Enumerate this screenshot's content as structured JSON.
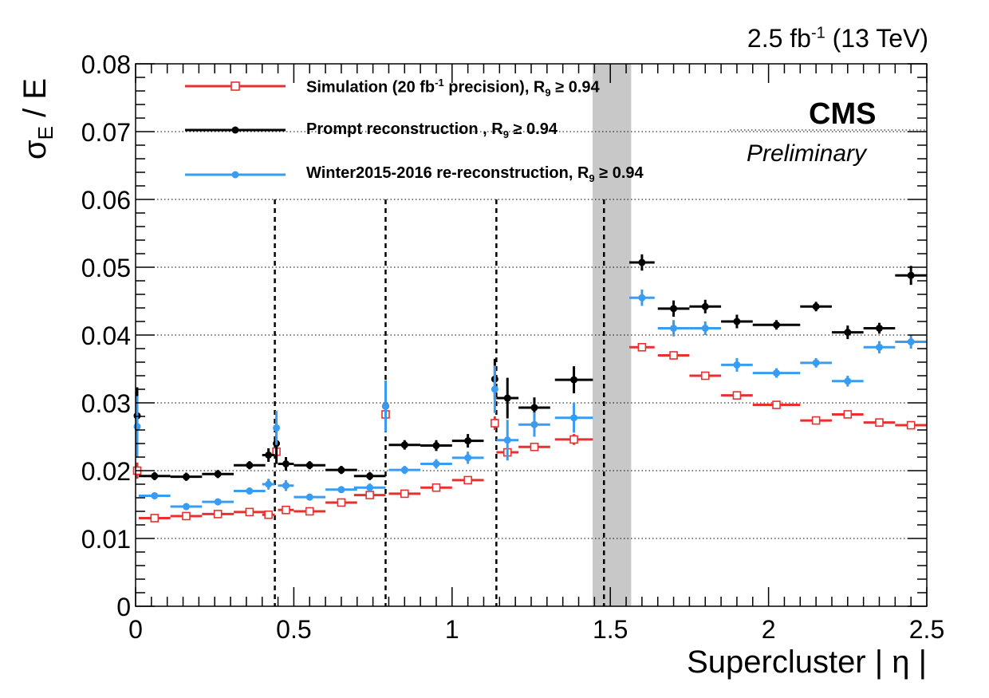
{
  "header": {
    "lumi_value": "2.5 fb",
    "lumi_exp": "-1",
    "energy": "(13 TeV)",
    "cms": "CMS",
    "preliminary": "Preliminary"
  },
  "chart_data": {
    "type": "scatter",
    "title": "",
    "xlabel": "Supercluster | η |",
    "ylabel": "σ_E / E",
    "xlim": [
      0,
      2.5
    ],
    "ylim": [
      0,
      0.08
    ],
    "x_ticks": [
      "0",
      "0.5",
      "1",
      "1.5",
      "2",
      "2.5"
    ],
    "y_ticks": [
      "0",
      "0.01",
      "0.02",
      "0.03",
      "0.04",
      "0.05",
      "0.06",
      "0.07",
      "0.08"
    ],
    "grid": "horizontal dotted",
    "legend_position": "top-left",
    "vertical_dashed_lines": [
      0.44,
      0.79,
      1.14,
      1.48
    ],
    "excluded_band": [
      1.4442,
      1.566
    ],
    "series": [
      {
        "name": "Simulation (20 fb-1 precision), R9 ≥ 0.94",
        "legend_main": "Simulation (20 fb",
        "legend_sup": "-1",
        "legend_rest": " precision), R",
        "legend_sub": "9",
        "legend_tail": "  ≥ 0.94",
        "color": "#e8302f",
        "marker": "open-square",
        "points": [
          {
            "x": 0.005,
            "xerr": 0.005,
            "y": 0.02,
            "yerr": 0.0012
          },
          {
            "x": 0.06,
            "xerr": 0.05,
            "y": 0.013,
            "yerr": 0.0003
          },
          {
            "x": 0.16,
            "xerr": 0.05,
            "y": 0.0133,
            "yerr": 0.0003
          },
          {
            "x": 0.26,
            "xerr": 0.05,
            "y": 0.0136,
            "yerr": 0.0003
          },
          {
            "x": 0.36,
            "xerr": 0.05,
            "y": 0.0139,
            "yerr": 0.0003
          },
          {
            "x": 0.42,
            "xerr": 0.02,
            "y": 0.0135,
            "yerr": 0.0003
          },
          {
            "x": 0.445,
            "xerr": 0.005,
            "y": 0.0228,
            "yerr": 0.001
          },
          {
            "x": 0.475,
            "xerr": 0.025,
            "y": 0.0142,
            "yerr": 0.0003
          },
          {
            "x": 0.55,
            "xerr": 0.05,
            "y": 0.014,
            "yerr": 0.0003
          },
          {
            "x": 0.65,
            "xerr": 0.05,
            "y": 0.0153,
            "yerr": 0.0003
          },
          {
            "x": 0.74,
            "xerr": 0.05,
            "y": 0.0164,
            "yerr": 0.0003
          },
          {
            "x": 0.79,
            "xerr": 0.005,
            "y": 0.0283,
            "yerr": 0.001
          },
          {
            "x": 0.85,
            "xerr": 0.05,
            "y": 0.0166,
            "yerr": 0.0003
          },
          {
            "x": 0.95,
            "xerr": 0.05,
            "y": 0.0175,
            "yerr": 0.0003
          },
          {
            "x": 1.05,
            "xerr": 0.05,
            "y": 0.0186,
            "yerr": 0.0003
          },
          {
            "x": 1.135,
            "xerr": 0.005,
            "y": 0.027,
            "yerr": 0.001
          },
          {
            "x": 1.175,
            "xerr": 0.035,
            "y": 0.0227,
            "yerr": 0.0006
          },
          {
            "x": 1.26,
            "xerr": 0.05,
            "y": 0.0235,
            "yerr": 0.0006
          },
          {
            "x": 1.385,
            "xerr": 0.06,
            "y": 0.0246,
            "yerr": 0.0008
          },
          {
            "x": 1.6,
            "xerr": 0.04,
            "y": 0.0382,
            "yerr": 0.0006
          },
          {
            "x": 1.7,
            "xerr": 0.05,
            "y": 0.037,
            "yerr": 0.0006
          },
          {
            "x": 1.8,
            "xerr": 0.05,
            "y": 0.034,
            "yerr": 0.0006
          },
          {
            "x": 1.9,
            "xerr": 0.05,
            "y": 0.0311,
            "yerr": 0.0006
          },
          {
            "x": 2.025,
            "xerr": 0.075,
            "y": 0.0297,
            "yerr": 0.0006
          },
          {
            "x": 2.15,
            "xerr": 0.05,
            "y": 0.0274,
            "yerr": 0.0006
          },
          {
            "x": 2.25,
            "xerr": 0.05,
            "y": 0.0283,
            "yerr": 0.0006
          },
          {
            "x": 2.35,
            "xerr": 0.05,
            "y": 0.0271,
            "yerr": 0.0006
          },
          {
            "x": 2.45,
            "xerr": 0.05,
            "y": 0.0267,
            "yerr": 0.0006
          }
        ]
      },
      {
        "name": "Prompt reconstruction , R9 ≥ 0.94",
        "legend_main": "Prompt reconstruction , R",
        "legend_sup": "",
        "legend_rest": "",
        "legend_sub": "9",
        "legend_tail": "  ≥ 0.94",
        "color": "#000000",
        "marker": "filled-circle",
        "points": [
          {
            "x": 0.005,
            "xerr": 0.005,
            "y": 0.0281,
            "yerr": 0.0042
          },
          {
            "x": 0.06,
            "xerr": 0.05,
            "y": 0.0192,
            "yerr": 0.0006
          },
          {
            "x": 0.16,
            "xerr": 0.05,
            "y": 0.0191,
            "yerr": 0.0006
          },
          {
            "x": 0.26,
            "xerr": 0.05,
            "y": 0.0195,
            "yerr": 0.0006
          },
          {
            "x": 0.36,
            "xerr": 0.05,
            "y": 0.0208,
            "yerr": 0.0006
          },
          {
            "x": 0.42,
            "xerr": 0.02,
            "y": 0.0223,
            "yerr": 0.001
          },
          {
            "x": 0.445,
            "xerr": 0.005,
            "y": 0.024,
            "yerr": 0.003
          },
          {
            "x": 0.475,
            "xerr": 0.025,
            "y": 0.021,
            "yerr": 0.001
          },
          {
            "x": 0.55,
            "xerr": 0.05,
            "y": 0.0208,
            "yerr": 0.0006
          },
          {
            "x": 0.65,
            "xerr": 0.05,
            "y": 0.0201,
            "yerr": 0.0006
          },
          {
            "x": 0.74,
            "xerr": 0.05,
            "y": 0.0192,
            "yerr": 0.0006
          },
          {
            "x": 0.79,
            "xerr": 0.005,
            "y": 0.0295,
            "yerr": 0.0035
          },
          {
            "x": 0.85,
            "xerr": 0.05,
            "y": 0.0238,
            "yerr": 0.0007
          },
          {
            "x": 0.95,
            "xerr": 0.05,
            "y": 0.0237,
            "yerr": 0.0008
          },
          {
            "x": 1.05,
            "xerr": 0.05,
            "y": 0.0244,
            "yerr": 0.001
          },
          {
            "x": 1.135,
            "xerr": 0.005,
            "y": 0.0335,
            "yerr": 0.003
          },
          {
            "x": 1.175,
            "xerr": 0.035,
            "y": 0.0307,
            "yerr": 0.003
          },
          {
            "x": 1.26,
            "xerr": 0.05,
            "y": 0.0293,
            "yerr": 0.0015
          },
          {
            "x": 1.385,
            "xerr": 0.06,
            "y": 0.0334,
            "yerr": 0.002
          },
          {
            "x": 1.6,
            "xerr": 0.04,
            "y": 0.0507,
            "yerr": 0.0012
          },
          {
            "x": 1.7,
            "xerr": 0.05,
            "y": 0.0439,
            "yerr": 0.0012
          },
          {
            "x": 1.8,
            "xerr": 0.05,
            "y": 0.0442,
            "yerr": 0.001
          },
          {
            "x": 1.9,
            "xerr": 0.05,
            "y": 0.042,
            "yerr": 0.001
          },
          {
            "x": 2.025,
            "xerr": 0.075,
            "y": 0.0415,
            "yerr": 0.0007
          },
          {
            "x": 2.15,
            "xerr": 0.05,
            "y": 0.0442,
            "yerr": 0.0007
          },
          {
            "x": 2.25,
            "xerr": 0.05,
            "y": 0.0404,
            "yerr": 0.001
          },
          {
            "x": 2.35,
            "xerr": 0.05,
            "y": 0.041,
            "yerr": 0.0008
          },
          {
            "x": 2.45,
            "xerr": 0.05,
            "y": 0.0488,
            "yerr": 0.0014
          }
        ]
      },
      {
        "name": "Winter2015-2016 re-reconstruction, R9 ≥ 0.94",
        "legend_main": "Winter2015-2016 re-reconstruction, R",
        "legend_sup": "",
        "legend_rest": "",
        "legend_sub": "9",
        "legend_tail": "  ≥ 0.94",
        "color": "#3a9cf0",
        "marker": "filled-circle",
        "points": [
          {
            "x": 0.005,
            "xerr": 0.005,
            "y": 0.0265,
            "yerr": 0.0045
          },
          {
            "x": 0.06,
            "xerr": 0.05,
            "y": 0.0163,
            "yerr": 0.0005
          },
          {
            "x": 0.16,
            "xerr": 0.05,
            "y": 0.0147,
            "yerr": 0.0005
          },
          {
            "x": 0.26,
            "xerr": 0.05,
            "y": 0.0154,
            "yerr": 0.0005
          },
          {
            "x": 0.36,
            "xerr": 0.05,
            "y": 0.017,
            "yerr": 0.0005
          },
          {
            "x": 0.42,
            "xerr": 0.02,
            "y": 0.018,
            "yerr": 0.0008
          },
          {
            "x": 0.445,
            "xerr": 0.005,
            "y": 0.0263,
            "yerr": 0.0025
          },
          {
            "x": 0.475,
            "xerr": 0.025,
            "y": 0.0178,
            "yerr": 0.0008
          },
          {
            "x": 0.55,
            "xerr": 0.05,
            "y": 0.0161,
            "yerr": 0.0005
          },
          {
            "x": 0.65,
            "xerr": 0.05,
            "y": 0.0172,
            "yerr": 0.0005
          },
          {
            "x": 0.74,
            "xerr": 0.05,
            "y": 0.0175,
            "yerr": 0.0006
          },
          {
            "x": 0.79,
            "xerr": 0.005,
            "y": 0.0295,
            "yerr": 0.0038
          },
          {
            "x": 0.85,
            "xerr": 0.05,
            "y": 0.0201,
            "yerr": 0.0006
          },
          {
            "x": 0.95,
            "xerr": 0.05,
            "y": 0.021,
            "yerr": 0.0007
          },
          {
            "x": 1.05,
            "xerr": 0.05,
            "y": 0.0219,
            "yerr": 0.0009
          },
          {
            "x": 1.135,
            "xerr": 0.005,
            "y": 0.032,
            "yerr": 0.0035
          },
          {
            "x": 1.175,
            "xerr": 0.035,
            "y": 0.0245,
            "yerr": 0.003
          },
          {
            "x": 1.26,
            "xerr": 0.05,
            "y": 0.0268,
            "yerr": 0.0018
          },
          {
            "x": 1.385,
            "xerr": 0.06,
            "y": 0.0278,
            "yerr": 0.0022
          },
          {
            "x": 1.6,
            "xerr": 0.04,
            "y": 0.0455,
            "yerr": 0.0012
          },
          {
            "x": 1.7,
            "xerr": 0.05,
            "y": 0.041,
            "yerr": 0.0012
          },
          {
            "x": 1.8,
            "xerr": 0.05,
            "y": 0.041,
            "yerr": 0.001
          },
          {
            "x": 1.9,
            "xerr": 0.05,
            "y": 0.0356,
            "yerr": 0.001
          },
          {
            "x": 2.025,
            "xerr": 0.075,
            "y": 0.0344,
            "yerr": 0.0007
          },
          {
            "x": 2.15,
            "xerr": 0.05,
            "y": 0.0359,
            "yerr": 0.0007
          },
          {
            "x": 2.25,
            "xerr": 0.05,
            "y": 0.0332,
            "yerr": 0.0008
          },
          {
            "x": 2.35,
            "xerr": 0.05,
            "y": 0.0382,
            "yerr": 0.0009
          },
          {
            "x": 2.45,
            "xerr": 0.05,
            "y": 0.039,
            "yerr": 0.001
          }
        ]
      }
    ]
  }
}
